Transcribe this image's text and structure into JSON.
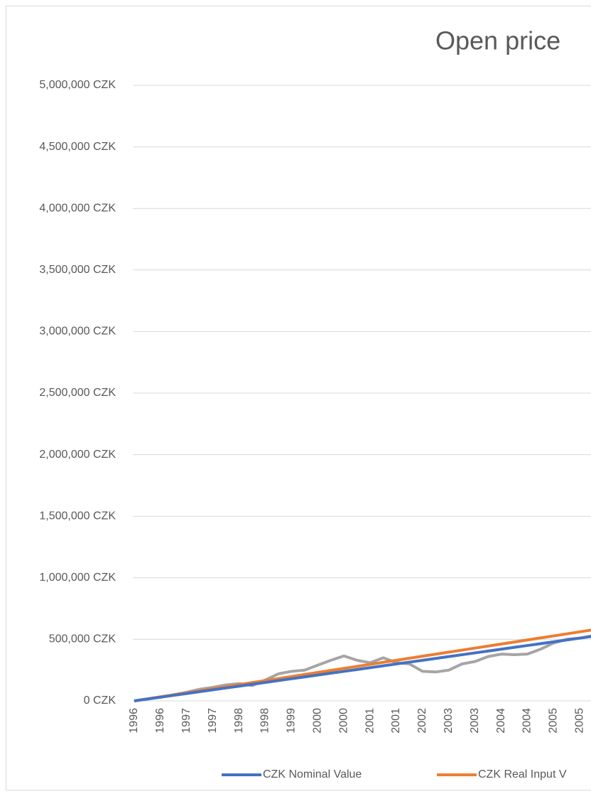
{
  "chart_data": {
    "type": "line",
    "title": "Open price",
    "categories": [
      "1996",
      null,
      "1996",
      null,
      "1997",
      null,
      "1997",
      null,
      "1998",
      null,
      "1998",
      null,
      "1999",
      null,
      "2000",
      null,
      "2000",
      null,
      "2001",
      null,
      "2001",
      null,
      "2002",
      null,
      "2003",
      null,
      "2003",
      null,
      "2004",
      null,
      "2004",
      null,
      "2005",
      null,
      "2005",
      null
    ],
    "series": [
      {
        "name": "CZK Nominal Value",
        "color": "#4472c4",
        "values": [
          0,
          15000,
          30000,
          45000,
          60000,
          75000,
          90000,
          105000,
          120000,
          135000,
          150000,
          165000,
          180000,
          195000,
          210000,
          225000,
          240000,
          255000,
          270000,
          285000,
          300000,
          315000,
          330000,
          345000,
          360000,
          375000,
          390000,
          405000,
          420000,
          435000,
          450000,
          465000,
          480000,
          495000,
          510000,
          525000
        ]
      },
      {
        "name": "CZK Real Input V",
        "color": "#ed7d31",
        "values": [
          0,
          16500,
          33000,
          49500,
          66000,
          82500,
          99000,
          115500,
          132000,
          148500,
          165000,
          181500,
          198000,
          214500,
          231000,
          247500,
          264000,
          280500,
          297000,
          313500,
          330000,
          346500,
          363000,
          379500,
          396000,
          412500,
          429000,
          445500,
          462000,
          478500,
          495000,
          511500,
          528000,
          544500,
          561000,
          577500
        ]
      },
      {
        "color": "#a5a5a5",
        "values": [
          0,
          15000,
          30000,
          50000,
          70000,
          95000,
          110000,
          130000,
          140000,
          125000,
          170000,
          220000,
          240000,
          250000,
          290000,
          330000,
          365000,
          330000,
          310000,
          350000,
          310000,
          300000,
          240000,
          235000,
          250000,
          300000,
          320000,
          360000,
          380000,
          375000,
          380000,
          420000,
          470000,
          500000,
          510000,
          530000
        ]
      }
    ],
    "ylim": [
      0,
      5000000
    ],
    "yticks": [
      {
        "value": 0,
        "label": "0 CZK"
      },
      {
        "value": 500000,
        "label": "500,000 CZK"
      },
      {
        "value": 1000000,
        "label": "1,000,000 CZK"
      },
      {
        "value": 1500000,
        "label": "1,500,000 CZK"
      },
      {
        "value": 2000000,
        "label": "2,000,000 CZK"
      },
      {
        "value": 2500000,
        "label": "2,500,000 CZK"
      },
      {
        "value": 3000000,
        "label": "3,000,000 CZK"
      },
      {
        "value": 3500000,
        "label": "3,500,000 CZK"
      },
      {
        "value": 4000000,
        "label": "4,000,000 CZK"
      },
      {
        "value": 4500000,
        "label": "4,500,000 CZK"
      },
      {
        "value": 5000000,
        "label": "5,000,000 CZK"
      }
    ],
    "grid": true
  }
}
